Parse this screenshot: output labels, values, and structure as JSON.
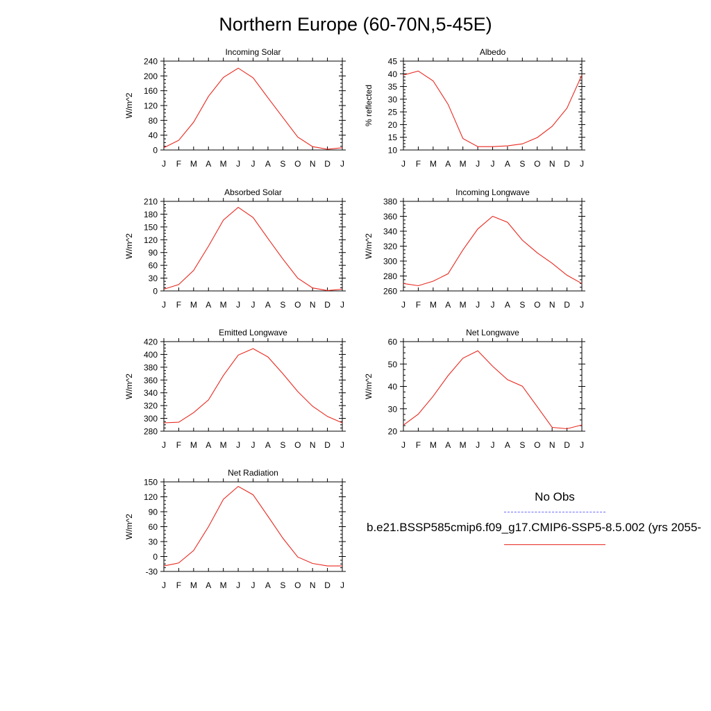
{
  "title": "Northern Europe (60-70N,5-45E)",
  "months": [
    "J",
    "F",
    "M",
    "A",
    "M",
    "J",
    "J",
    "A",
    "S",
    "O",
    "N",
    "D",
    "J"
  ],
  "legend": {
    "obs_label": "No Obs",
    "obs_color": "#6a6aff",
    "model_label": "b.e21.BSSP585cmip6.f09_g17.CMIP6-SSP5-8.5.002 (yrs 2055-",
    "model_color": "#e8281e"
  },
  "chart_data": [
    {
      "type": "line",
      "title": "Incoming Solar",
      "ylabel": "W/m^2",
      "ylim": [
        0,
        240
      ],
      "yticks": [
        0,
        40,
        80,
        120,
        160,
        200,
        240
      ],
      "x": [
        "J",
        "F",
        "M",
        "A",
        "M",
        "J",
        "J",
        "A",
        "S",
        "O",
        "N",
        "D",
        "J"
      ],
      "series": [
        {
          "values": [
            6,
            26,
            75,
            145,
            196,
            221,
            195,
            141,
            88,
            35,
            9,
            2,
            6
          ]
        }
      ]
    },
    {
      "type": "line",
      "title": "Albedo",
      "ylabel": "% reflected",
      "ylim": [
        10,
        45
      ],
      "yticks": [
        10,
        15,
        20,
        25,
        30,
        35,
        40,
        45
      ],
      "x": [
        "J",
        "F",
        "M",
        "A",
        "M",
        "J",
        "J",
        "A",
        "S",
        "O",
        "N",
        "D",
        "J"
      ],
      "series": [
        {
          "values": [
            39.5,
            41.1,
            37.2,
            28.0,
            14.5,
            11.3,
            11.3,
            11.6,
            12.4,
            14.9,
            19.3,
            26.5,
            39.5
          ]
        }
      ]
    },
    {
      "type": "line",
      "title": "Absorbed Solar",
      "ylabel": "W/m^2",
      "ylim": [
        0,
        210
      ],
      "yticks": [
        0,
        30,
        60,
        90,
        120,
        150,
        180,
        210
      ],
      "x": [
        "J",
        "F",
        "M",
        "A",
        "M",
        "J",
        "J",
        "A",
        "S",
        "O",
        "N",
        "D",
        "J"
      ],
      "series": [
        {
          "values": [
            4,
            15,
            48,
            105,
            166,
            196,
            172,
            123,
            75,
            30,
            7,
            1,
            4
          ]
        }
      ]
    },
    {
      "type": "line",
      "title": "Incoming Longwave",
      "ylabel": "W/m^2",
      "ylim": [
        260,
        380
      ],
      "yticks": [
        260,
        280,
        300,
        320,
        340,
        360,
        380
      ],
      "x": [
        "J",
        "F",
        "M",
        "A",
        "M",
        "J",
        "J",
        "A",
        "S",
        "O",
        "N",
        "D",
        "J"
      ],
      "series": [
        {
          "values": [
            270,
            267,
            273,
            283,
            315,
            343,
            360,
            352,
            328,
            311,
            297,
            281,
            270
          ]
        }
      ]
    },
    {
      "type": "line",
      "title": "Emitted Longwave",
      "ylabel": "W/m^2",
      "ylim": [
        280,
        420
      ],
      "yticks": [
        280,
        300,
        320,
        340,
        360,
        380,
        400,
        420
      ],
      "x": [
        "J",
        "F",
        "M",
        "A",
        "M",
        "J",
        "J",
        "A",
        "S",
        "O",
        "N",
        "D",
        "J"
      ],
      "series": [
        {
          "values": [
            293,
            294,
            309,
            329,
            367,
            399,
            409,
            396,
            370,
            342,
            319,
            303,
            293
          ]
        }
      ]
    },
    {
      "type": "line",
      "title": "Net Longwave",
      "ylabel": "W/m^2",
      "ylim": [
        20,
        60
      ],
      "yticks": [
        20,
        30,
        40,
        50,
        60
      ],
      "x": [
        "J",
        "F",
        "M",
        "A",
        "M",
        "J",
        "J",
        "A",
        "S",
        "O",
        "N",
        "D",
        "J"
      ],
      "series": [
        {
          "values": [
            22.7,
            27.6,
            35.6,
            44.8,
            52.6,
            55.9,
            49.0,
            43.0,
            40.1,
            30.9,
            21.7,
            21.1,
            22.8
          ]
        }
      ]
    },
    {
      "type": "line",
      "title": "Net Radiation",
      "ylabel": "W/m^2",
      "ylim": [
        -30,
        150
      ],
      "yticks": [
        -30,
        0,
        30,
        60,
        90,
        120,
        150
      ],
      "x": [
        "J",
        "F",
        "M",
        "A",
        "M",
        "J",
        "J",
        "A",
        "S",
        "O",
        "N",
        "D",
        "J"
      ],
      "series": [
        {
          "values": [
            -19,
            -13,
            12,
            60,
            115,
            141,
            124,
            81,
            37,
            -1,
            -14,
            -19,
            -19
          ]
        }
      ]
    }
  ]
}
